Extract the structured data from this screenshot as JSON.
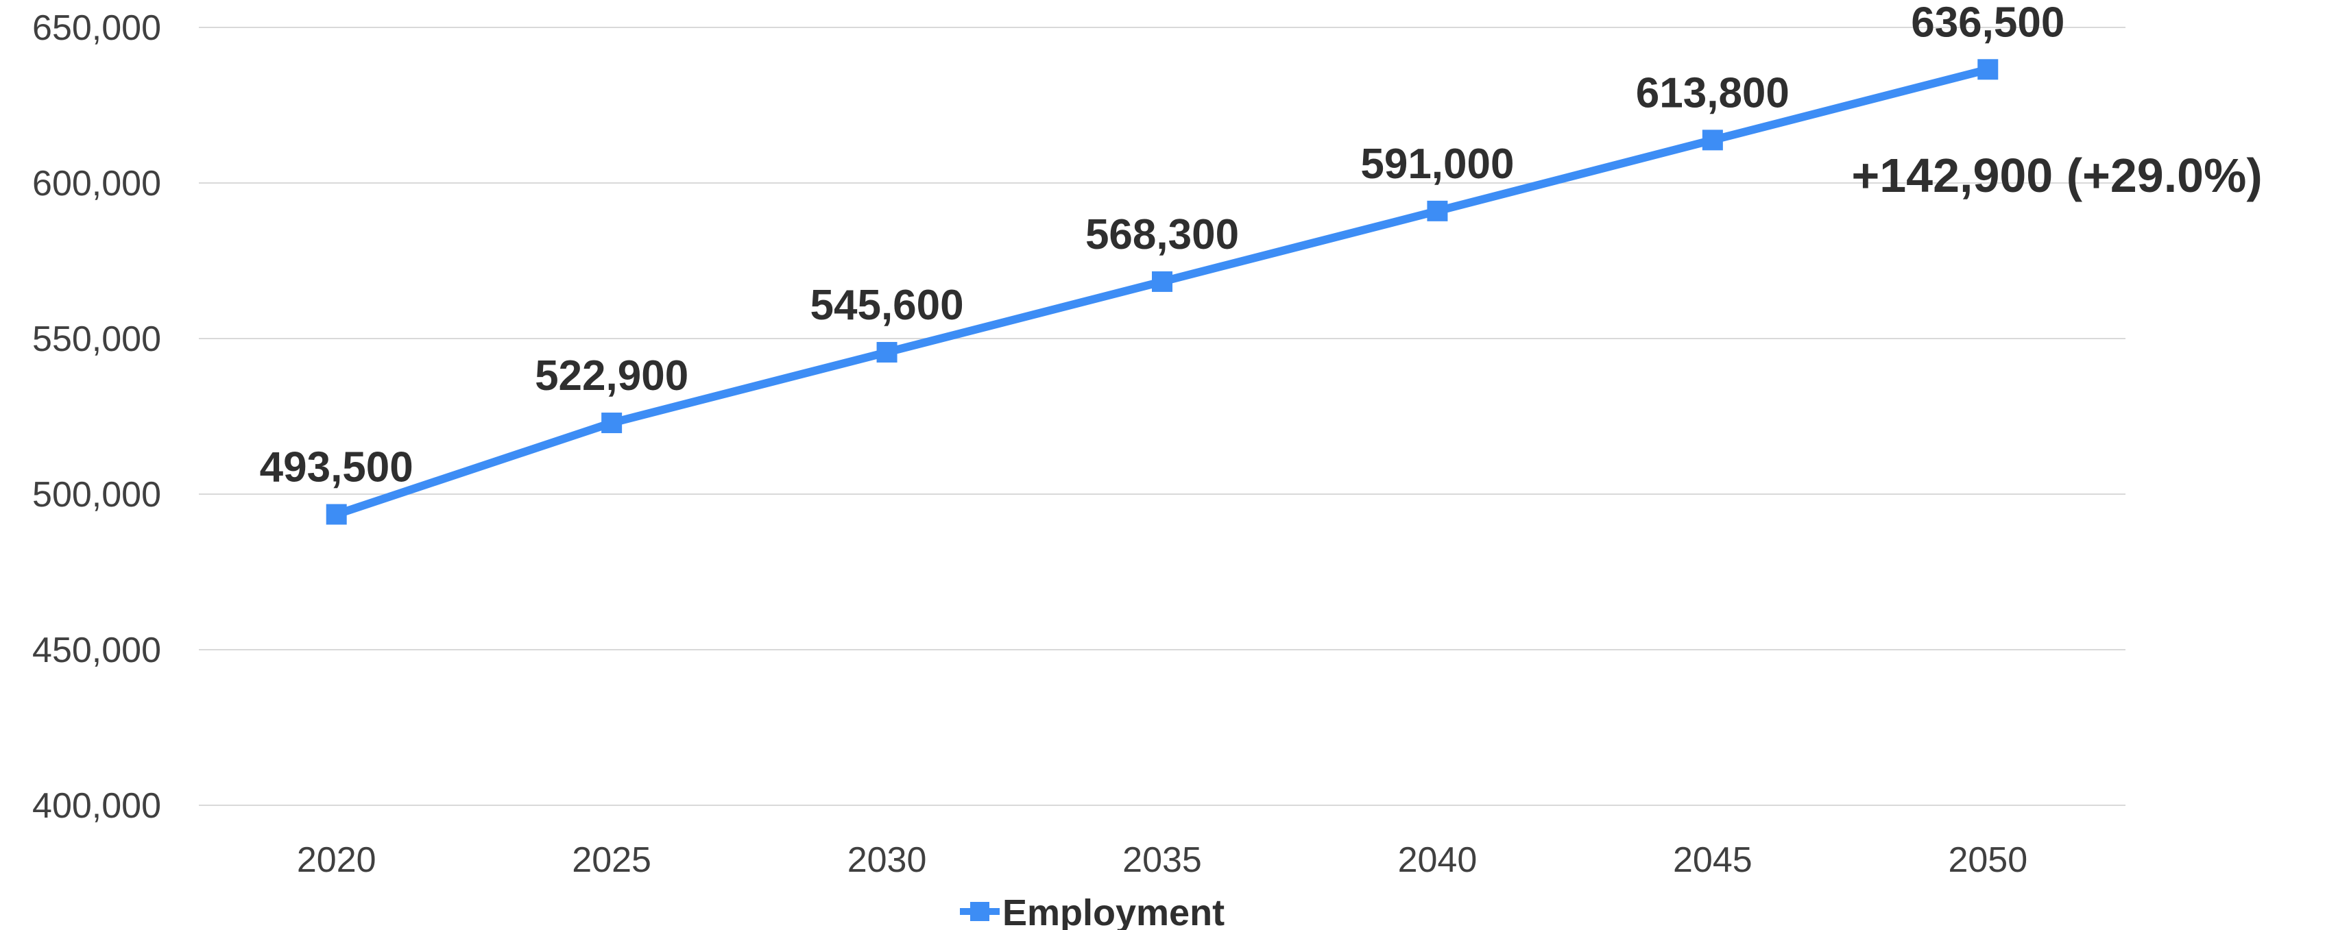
{
  "chart_data": {
    "type": "line",
    "title": "",
    "xlabel": "",
    "ylabel": "",
    "categories": [
      "2020",
      "2025",
      "2030",
      "2035",
      "2040",
      "2045",
      "2050"
    ],
    "series": [
      {
        "name": "Employment",
        "values": [
          493500,
          522900,
          545600,
          568300,
          591000,
          613800,
          636500
        ],
        "labels": [
          "493,500",
          "522,900",
          "545,600",
          "568,300",
          "591,000",
          "613,800",
          "636,500"
        ],
        "color": "#3d8df5",
        "marker": "square"
      }
    ],
    "ylim": [
      400000,
      650000
    ],
    "yticks": [
      400000,
      450000,
      500000,
      550000,
      600000,
      650000
    ],
    "ytick_labels": [
      "400,000",
      "450,000",
      "500,000",
      "550,000",
      "600,000",
      "650,000"
    ],
    "grid": true,
    "gridline_color": "#d9d9d9",
    "legend_position": "bottom",
    "annotation": "+142,900 (+29.0%)"
  }
}
